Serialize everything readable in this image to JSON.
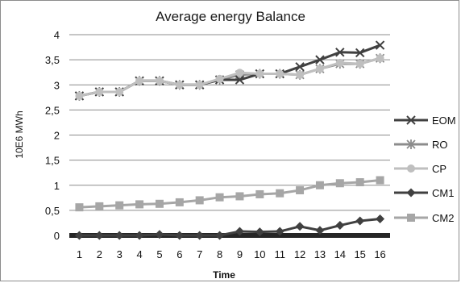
{
  "chart_data": {
    "type": "line",
    "title": "Average energy Balance",
    "xlabel": "Time",
    "ylabel": "10E6 MWh",
    "categories": [
      "1",
      "2",
      "3",
      "4",
      "5",
      "6",
      "7",
      "8",
      "9",
      "10",
      "11",
      "12",
      "13",
      "14",
      "15",
      "16"
    ],
    "ylim": [
      0,
      4
    ],
    "yticks": [
      "0",
      "0,5",
      "1",
      "1,5",
      "2",
      "2,5",
      "3",
      "3,5",
      "4"
    ],
    "grid": "horizontal",
    "legend_position": "right",
    "series": [
      {
        "name": "EOM",
        "marker": "x",
        "color": "#404040",
        "values": [
          2.78,
          2.86,
          2.86,
          3.08,
          3.08,
          3.0,
          3.0,
          3.1,
          3.1,
          3.22,
          3.22,
          3.36,
          3.5,
          3.65,
          3.64,
          3.79
        ]
      },
      {
        "name": "RO",
        "marker": "star",
        "color": "#8c8c8c",
        "values": [
          2.78,
          2.86,
          2.86,
          3.08,
          3.08,
          3.0,
          3.0,
          3.1,
          3.2,
          3.22,
          3.22,
          3.2,
          3.32,
          3.42,
          3.42,
          3.53
        ]
      },
      {
        "name": "CP",
        "marker": "circle",
        "color": "#bfbfbf",
        "values": [
          2.78,
          2.86,
          2.86,
          3.08,
          3.08,
          3.0,
          3.0,
          3.12,
          3.24,
          3.22,
          3.22,
          3.2,
          3.32,
          3.44,
          3.42,
          3.53
        ]
      },
      {
        "name": "CM1",
        "marker": "diamond",
        "color": "#404040",
        "values": [
          0.0,
          0.0,
          0.0,
          0.0,
          0.02,
          0.0,
          0.0,
          0.0,
          0.08,
          0.07,
          0.08,
          0.18,
          0.1,
          0.2,
          0.29,
          0.33
        ]
      },
      {
        "name": "CM2",
        "marker": "square",
        "color": "#a6a6a6",
        "values": [
          0.56,
          0.58,
          0.6,
          0.62,
          0.63,
          0.66,
          0.7,
          0.76,
          0.78,
          0.82,
          0.84,
          0.9,
          1.0,
          1.04,
          1.06,
          1.1
        ]
      }
    ]
  }
}
